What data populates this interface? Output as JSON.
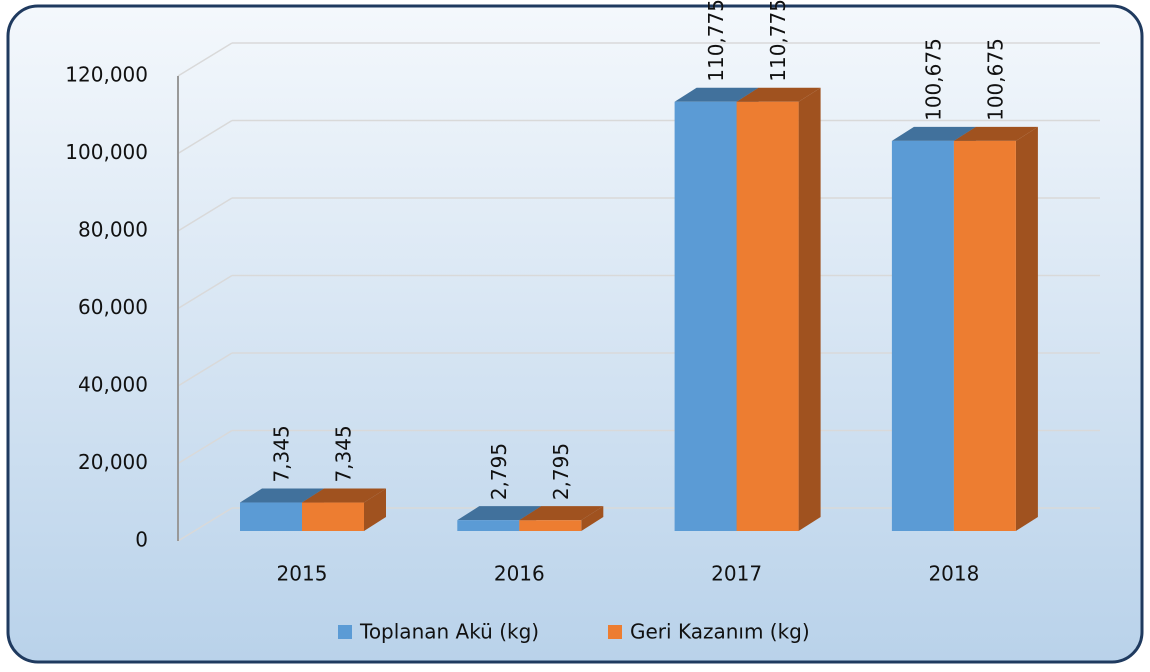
{
  "chart_data": {
    "type": "bar3d",
    "categories": [
      "2015",
      "2016",
      "2017",
      "2018"
    ],
    "series": [
      {
        "name": "Toplanan Akü (kg)",
        "color": "#5b9bd5",
        "values": [
          7345,
          2795,
          110775,
          100675
        ],
        "value_labels": [
          "7,345",
          "2,795",
          "110,775",
          "100,675"
        ]
      },
      {
        "name": "Geri Kazanım (kg)",
        "color": "#ed7d31",
        "values": [
          7345,
          2795,
          110775,
          100675
        ],
        "value_labels": [
          "7,345",
          "2,795",
          "110,775",
          "100,675"
        ]
      }
    ],
    "ylim": [
      0,
      120000
    ],
    "yticks": [
      0,
      {
        "value": 20000,
        "label": "20,000"
      },
      {
        "value": 40000,
        "label": "40,000"
      },
      {
        "value": 60000,
        "label": "60,000"
      },
      {
        "value": 80000,
        "label": "80,000"
      },
      {
        "value": 100000,
        "label": "100,000"
      },
      {
        "value": 120000,
        "label": "120,000"
      }
    ],
    "grid": true,
    "legend": "bottom"
  }
}
